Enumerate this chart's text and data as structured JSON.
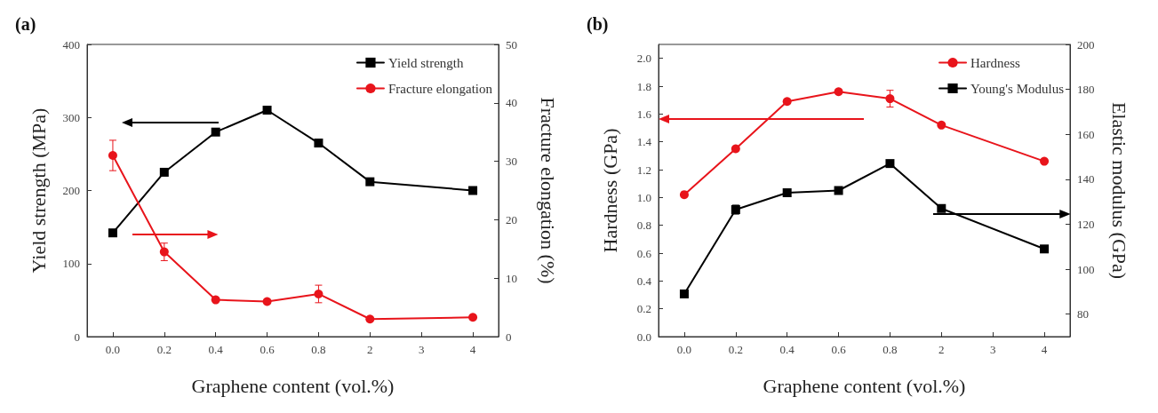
{
  "chart_data": [
    {
      "type": "line",
      "title": "(a)",
      "xlabel": "Graphene content (vol.%)",
      "ylabel": "Yield strength (MPa)",
      "y2label": "Fracture elongation (%)",
      "categories": [
        "0.0",
        "0.2",
        "0.4",
        "0.6",
        "0.8",
        "2",
        "3",
        "4"
      ],
      "series": [
        {
          "name": "Yield strength",
          "color": "#000000",
          "marker": "square",
          "values": [
            142,
            225,
            280,
            310,
            265,
            212,
            null,
            200
          ]
        },
        {
          "name": "Fracture elongation",
          "color": "#e8141b",
          "marker": "circle",
          "axis": "y2",
          "values": [
            31,
            14.5,
            6.3,
            6,
            7.3,
            3,
            null,
            3.3
          ],
          "errors": [
            2.6,
            1.5,
            null,
            null,
            1.5,
            null,
            null,
            null
          ]
        }
      ],
      "ylim": [
        0,
        400
      ],
      "yticks": [
        0,
        100,
        200,
        300,
        400
      ],
      "y2lim": [
        0,
        50
      ],
      "y2ticks": [
        0,
        10,
        20,
        30,
        40,
        50
      ],
      "legend": "top right",
      "line_style": "solid",
      "grid": false
    },
    {
      "type": "line",
      "title": "(b)",
      "xlabel": "Graphene content (vol.%)",
      "ylabel": "Hardness (GPa)",
      "y2label": "Elastic modulus (GPa)",
      "categories": [
        "0.0",
        "0.2",
        "0.4",
        "0.6",
        "0.8",
        "2",
        "3",
        "4"
      ],
      "series": [
        {
          "name": "Hardness",
          "color": "#e8141b",
          "marker": "circle",
          "values": [
            1.02,
            1.35,
            1.69,
            1.76,
            1.71,
            1.52,
            null,
            1.26
          ],
          "errors": [
            null,
            null,
            null,
            null,
            0.06,
            null,
            null,
            null
          ]
        },
        {
          "name": "Young's Modulus",
          "color": "#000000",
          "marker": "square",
          "axis": "y2",
          "values": [
            89,
            126.5,
            134,
            135,
            147,
            127,
            null,
            109
          ],
          "errors": [
            null,
            2,
            null,
            1.5,
            null,
            null,
            null,
            null
          ]
        }
      ],
      "ylim": [
        0,
        2.1
      ],
      "yticks": [
        {
          "value": 0,
          "label": "0.0"
        },
        {
          "value": 0.2,
          "label": "0.2"
        },
        {
          "value": 0.4,
          "label": "0.4"
        },
        {
          "value": 0.6,
          "label": "0.6"
        },
        {
          "value": 0.8,
          "label": "0.8"
        },
        {
          "value": 1,
          "label": "1.0"
        },
        {
          "value": 1.2,
          "label": "1.2"
        },
        {
          "value": 1.4,
          "label": "1.4"
        },
        {
          "value": 1.6,
          "label": "1.6"
        },
        {
          "value": 1.8,
          "label": "1.8"
        },
        {
          "value": 2,
          "label": "2.0"
        }
      ],
      "y2lim": [
        70,
        200
      ],
      "y2ticks": [
        80,
        100,
        120,
        140,
        160,
        180,
        200
      ],
      "legend": "top right",
      "line_style": "solid",
      "grid": false
    }
  ]
}
